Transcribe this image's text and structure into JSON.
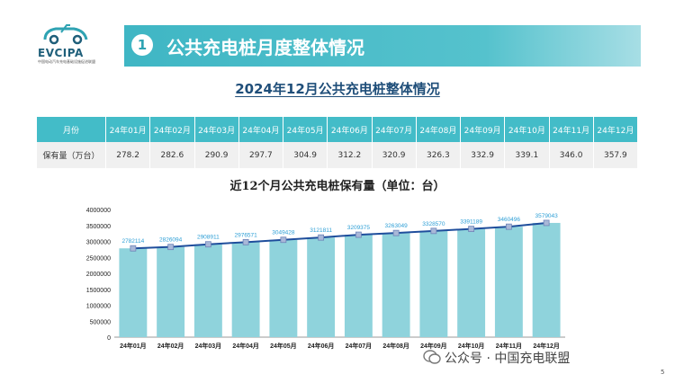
{
  "logo": {
    "brand": "EVCIPA",
    "subtext": "中国电动汽车充电基础设施促进联盟"
  },
  "header": {
    "number": "1",
    "title": "公共充电桩月度整体情况"
  },
  "subtitle": "2024年12月公共充电桩整体情况",
  "table": {
    "header_label": "月份",
    "row_label": "保有量（万台）",
    "months": [
      "24年01月",
      "24年02月",
      "24年03月",
      "24年04月",
      "24年05月",
      "24年06月",
      "24年07月",
      "24年08月",
      "24年09月",
      "24年10月",
      "24年11月",
      "24年12月"
    ],
    "values": [
      "278.2",
      "282.6",
      "290.9",
      "297.7",
      "304.9",
      "312.2",
      "320.9",
      "326.3",
      "332.9",
      "339.1",
      "346.0",
      "357.9"
    ]
  },
  "chart_data": {
    "type": "bar",
    "title": "近12个月公共充电桩保有量（单位：台）",
    "categories": [
      "24年01月",
      "24年02月",
      "24年03月",
      "24年04月",
      "24年05月",
      "24年06月",
      "24年07月",
      "24年08月",
      "24年09月",
      "24年10月",
      "24年11月",
      "24年12月"
    ],
    "values": [
      2782114,
      2826094,
      2908911,
      2976571,
      3049428,
      3121811,
      3209375,
      3263049,
      3328570,
      3391189,
      3460496,
      3579043
    ],
    "ylim": [
      0,
      4000000
    ],
    "yticks": [
      "4000000",
      "3500000",
      "3000000",
      "2500000",
      "2000000",
      "1500000",
      "1000000",
      "500000",
      "0"
    ],
    "line_overlay": true,
    "bar_color": "#8fd3dc",
    "line_color": "#1f4e9c",
    "label_color": "#2e9fd6"
  },
  "watermark": "公众号 · 中国充电联盟",
  "page_number": "5"
}
